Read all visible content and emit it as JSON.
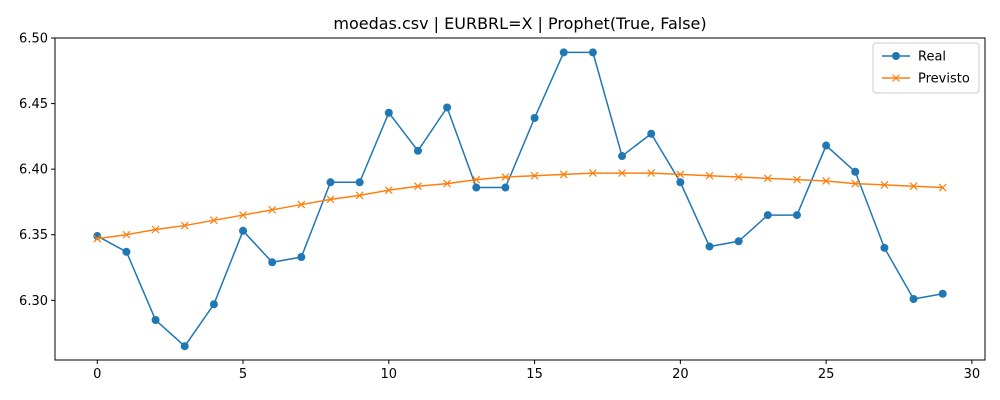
{
  "chart_data": {
    "type": "line",
    "title": "moedas.csv | EURBRL=X | Prophet(True, False)",
    "xlabel": "",
    "ylabel": "",
    "xlim": [
      -1.45,
      30.45
    ],
    "ylim": [
      6.2545,
      6.5
    ],
    "x_ticks": [
      0,
      5,
      10,
      15,
      20,
      25,
      30
    ],
    "y_ticks": [
      6.3,
      6.35,
      6.4,
      6.45,
      6.5
    ],
    "x_tick_labels": [
      "0",
      "5",
      "10",
      "15",
      "20",
      "25",
      "30"
    ],
    "y_tick_labels": [
      "6.30",
      "6.35",
      "6.40",
      "6.45",
      "6.50"
    ],
    "grid": false,
    "legend_position": "top-right",
    "x": [
      0,
      1,
      2,
      3,
      4,
      5,
      6,
      7,
      8,
      9,
      10,
      11,
      12,
      13,
      14,
      15,
      16,
      17,
      18,
      19,
      20,
      21,
      22,
      23,
      24,
      25,
      26,
      27,
      28,
      29
    ],
    "series": [
      {
        "name": "Real",
        "color": "#1f77b4",
        "marker": "circle",
        "values": [
          6.349,
          6.337,
          6.285,
          6.265,
          6.297,
          6.353,
          6.329,
          6.333,
          6.39,
          6.39,
          6.443,
          6.414,
          6.447,
          6.386,
          6.386,
          6.439,
          6.489,
          6.489,
          6.41,
          6.427,
          6.39,
          6.341,
          6.345,
          6.365,
          6.365,
          6.418,
          6.398,
          6.34,
          6.301,
          6.305
        ]
      },
      {
        "name": "Previsto",
        "color": "#ff7f0e",
        "marker": "x",
        "values": [
          6.347,
          6.35,
          6.354,
          6.357,
          6.361,
          6.365,
          6.369,
          6.373,
          6.377,
          6.38,
          6.384,
          6.387,
          6.389,
          6.392,
          6.394,
          6.395,
          6.396,
          6.397,
          6.397,
          6.397,
          6.396,
          6.395,
          6.394,
          6.393,
          6.392,
          6.391,
          6.389,
          6.388,
          6.387,
          6.386
        ]
      }
    ]
  }
}
